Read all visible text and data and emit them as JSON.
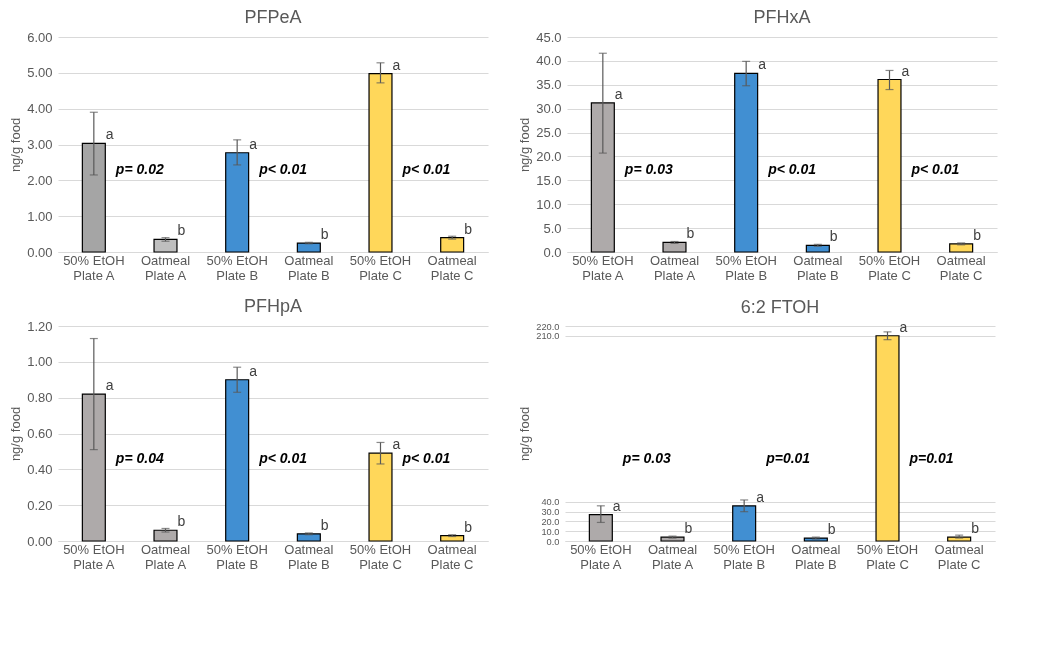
{
  "chart_data": [
    {
      "type": "bar",
      "title": "PFPeA",
      "ylabel": "ng/g food",
      "categories": [
        "50% EtOH\nPlate A",
        "Oatmeal\nPlate A",
        "50% EtOH\nPlate B",
        "Oatmeal\nPlate B",
        "50% EtOH\nPlate C",
        "Oatmeal\nPlate C"
      ],
      "values": [
        3.03,
        0.35,
        2.77,
        0.25,
        4.98,
        0.4
      ],
      "errors": [
        [
          2.15,
          3.9
        ],
        0.05,
        [
          2.43,
          3.13
        ],
        0.02,
        [
          4.72,
          5.28
        ],
        0.04
      ],
      "colors": [
        "#a5a5a5",
        "#bfbfbf",
        "#418fd2",
        "#418fd2",
        "#ffd75a",
        "#ffd75a"
      ],
      "ylim": [
        0,
        6
      ],
      "yticks": [
        {
          "value": 0,
          "label": "0.00"
        },
        {
          "value": 1,
          "label": "1.00"
        },
        {
          "value": 2,
          "label": "2.00"
        },
        {
          "value": 3,
          "label": "3.00"
        },
        {
          "value": 4,
          "label": "4.00"
        },
        {
          "value": 5,
          "label": "5.00"
        },
        {
          "value": 6,
          "label": "6.00"
        }
      ],
      "grid": "y",
      "annotations": [
        {
          "text": "a",
          "x": "50% EtOH\nPlate A",
          "y": 3.03
        },
        {
          "text": "b",
          "x": "Oatmeal\nPlate A",
          "y": 0.35
        },
        {
          "text": "a",
          "x": "50% EtOH\nPlate B",
          "y": 2.77
        },
        {
          "text": "b",
          "x": "Oatmeal\nPlate B",
          "y": 0.25
        },
        {
          "text": "a",
          "x": "50% EtOH\nPlate C",
          "y": 4.98
        },
        {
          "text": "b",
          "x": "Oatmeal\nPlate C",
          "y": 0.4
        },
        "p= 0.02",
        "p< 0.01",
        "p< 0.01"
      ]
    },
    {
      "type": "bar",
      "title": "PFHxA",
      "ylabel": "ng/g food",
      "categories": [
        "50% EtOH\nPlate A",
        "Oatmeal\nPlate A",
        "50% EtOH\nPlate B",
        "Oatmeal\nPlate B",
        "50% EtOH\nPlate C",
        "Oatmeal\nPlate C"
      ],
      "values": [
        31.2,
        2.0,
        37.4,
        1.4,
        36.1,
        1.7
      ],
      "errors": [
        [
          20.7,
          41.6
        ],
        0.2,
        [
          34.8,
          39.9
        ],
        0.2,
        [
          34.0,
          38.0
        ],
        0.2
      ],
      "colors": [
        "#aeaaaa",
        "#aeaaaa",
        "#418fd2",
        "#418fd2",
        "#ffd75a",
        "#ffd75a"
      ],
      "ylim": [
        0,
        45
      ],
      "yticks": [
        {
          "value": 0,
          "label": "0.0"
        },
        {
          "value": 5,
          "label": "5.0"
        },
        {
          "value": 10,
          "label": "10.0"
        },
        {
          "value": 15,
          "label": "15.0"
        },
        {
          "value": 20,
          "label": "20.0"
        },
        {
          "value": 25,
          "label": "25.0"
        },
        {
          "value": 30,
          "label": "30.0"
        },
        {
          "value": 35,
          "label": "35.0"
        },
        {
          "value": 40,
          "label": "40.0"
        },
        {
          "value": 45,
          "label": "45.0"
        }
      ],
      "grid": "y",
      "annotations": [
        {
          "text": "a",
          "x": "50% EtOH\nPlate A",
          "y": 31.2
        },
        {
          "text": "b",
          "x": "Oatmeal\nPlate A",
          "y": 2.0
        },
        {
          "text": "a",
          "x": "50% EtOH\nPlate B",
          "y": 37.4
        },
        {
          "text": "b",
          "x": "Oatmeal\nPlate B",
          "y": 1.4
        },
        {
          "text": "a",
          "x": "50% EtOH\nPlate C",
          "y": 36.1
        },
        {
          "text": "b",
          "x": "Oatmeal\nPlate C",
          "y": 1.7
        },
        "p= 0.03",
        "p< 0.01",
        "p< 0.01"
      ]
    },
    {
      "type": "bar",
      "title": "PFHpA",
      "ylabel": "ng/g food",
      "categories": [
        "50% EtOH\nPlate A",
        "Oatmeal\nPlate A",
        "50% EtOH\nPlate B",
        "Oatmeal\nPlate B",
        "50% EtOH\nPlate C",
        "Oatmeal\nPlate C"
      ],
      "values": [
        0.82,
        0.06,
        0.9,
        0.04,
        0.49,
        0.03
      ],
      "errors": [
        [
          0.51,
          1.13
        ],
        0.01,
        [
          0.83,
          0.97
        ],
        0.005,
        [
          0.43,
          0.55
        ],
        0.005
      ],
      "colors": [
        "#aeaaaa",
        "#aeaaaa",
        "#418fd2",
        "#418fd2",
        "#ffd75a",
        "#ffd75a"
      ],
      "ylim": [
        0,
        1.2
      ],
      "yticks": [
        {
          "value": 0,
          "label": "0.00"
        },
        {
          "value": 0.2,
          "label": "0.20"
        },
        {
          "value": 0.4,
          "label": "0.40"
        },
        {
          "value": 0.6,
          "label": "0.60"
        },
        {
          "value": 0.8,
          "label": "0.80"
        },
        {
          "value": 1,
          "label": "1.00"
        },
        {
          "value": 1.2,
          "label": "1.20"
        }
      ],
      "grid": "y",
      "annotations": [
        {
          "text": "a",
          "x": "50% EtOH\nPlate A",
          "y": 0.82
        },
        {
          "text": "b",
          "x": "Oatmeal\nPlate A",
          "y": 0.06
        },
        {
          "text": "a",
          "x": "50% EtOH\nPlate B",
          "y": 0.9
        },
        {
          "text": "b",
          "x": "Oatmeal\nPlate B",
          "y": 0.04
        },
        {
          "text": "a",
          "x": "50% EtOH\nPlate C",
          "y": 0.49
        },
        {
          "text": "b",
          "x": "Oatmeal\nPlate C",
          "y": 0.03
        },
        "p= 0.04",
        "p< 0.01",
        "p< 0.01"
      ]
    },
    {
      "type": "bar",
      "title": "6:2 FTOH",
      "ylabel": "ng/g food",
      "categories": [
        "50% EtOH\nPlate A",
        "Oatmeal\nPlate A",
        "50% EtOH\nPlate B",
        "Oatmeal\nPlate B",
        "50% EtOH\nPlate C",
        "Oatmeal\nPlate C"
      ],
      "values": [
        27,
        4,
        36,
        3,
        210,
        4
      ],
      "errors": [
        [
          19,
          36
        ],
        1,
        [
          30,
          42
        ],
        1,
        [
          206,
          214
        ],
        [
          3,
          6
        ]
      ],
      "colors": [
        "#aeaaaa",
        "#aeaaaa",
        "#418fd2",
        "#418fd2",
        "#ffd75a",
        "#ffd75a"
      ],
      "ylim": [
        0,
        220
      ],
      "yticks": [
        {
          "value": 0,
          "label": "0.0"
        },
        {
          "value": 10,
          "label": "10.0"
        },
        {
          "value": 20,
          "label": "20.0"
        },
        {
          "value": 30,
          "label": "30.0"
        },
        {
          "value": 40,
          "label": "40.0"
        },
        {
          "value": 210,
          "label": "210.0"
        },
        {
          "value": 220,
          "label": "220.0"
        }
      ],
      "grid": "y",
      "annotations": [
        {
          "text": "a",
          "x": "50% EtOH\nPlate A",
          "y": 27
        },
        {
          "text": "b",
          "x": "Oatmeal\nPlate A",
          "y": 4
        },
        {
          "text": "a",
          "x": "50% EtOH\nPlate B",
          "y": 36
        },
        {
          "text": "b",
          "x": "Oatmeal\nPlate B",
          "y": 3
        },
        {
          "text": "a",
          "x": "50% EtOH\nPlate C",
          "y": 210
        },
        {
          "text": "b",
          "x": "Oatmeal\nPlate C",
          "y": 4
        },
        "p= 0.03",
        "p=0.01",
        "p=0.01"
      ]
    }
  ]
}
